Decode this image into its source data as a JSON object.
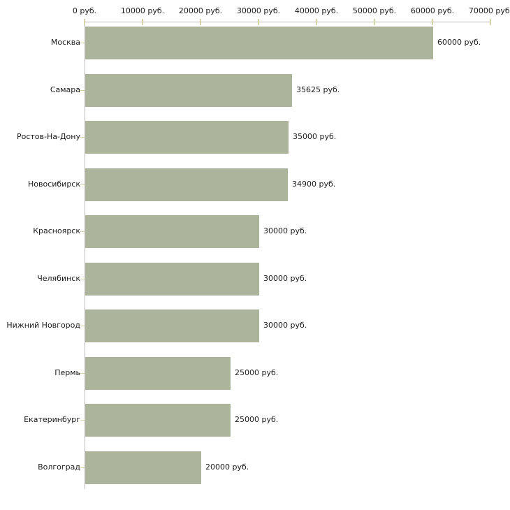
{
  "chart_data": {
    "type": "bar",
    "orientation": "horizontal",
    "title": "",
    "xlabel": "",
    "ylabel": "",
    "xlim": [
      0,
      70000
    ],
    "grid": false,
    "legend": "none",
    "categories": [
      "Москва",
      "Самара",
      "Ростов-На-Дону",
      "Новосибирск",
      "Красноярск",
      "Челябинск",
      "Нижний Новгород",
      "Пермь",
      "Екатеринбург",
      "Волгоград"
    ],
    "values": [
      60000,
      35625,
      35000,
      34900,
      30000,
      30000,
      30000,
      25000,
      25000,
      20000
    ],
    "value_labels": [
      "60000 руб.",
      "35625 руб.",
      "35000 руб.",
      "34900 руб.",
      "30000 руб.",
      "30000 руб.",
      "30000 руб.",
      "25000 руб.",
      "25000 руб.",
      "20000 руб."
    ],
    "x_ticks": [
      {
        "value": 0,
        "label": "0 руб."
      },
      {
        "value": 10000,
        "label": "10000 руб."
      },
      {
        "value": 20000,
        "label": "20000 руб."
      },
      {
        "value": 30000,
        "label": "30000 руб."
      },
      {
        "value": 40000,
        "label": "40000 руб."
      },
      {
        "value": 50000,
        "label": "50000 руб."
      },
      {
        "value": 60000,
        "label": "60000 руб."
      },
      {
        "value": 70000,
        "label": "70000 руб."
      }
    ],
    "colors": {
      "bar_fill": "#acb49c",
      "axis_line": "#bdbdbd",
      "tick_mark": "#d4d4a6",
      "text": "#1a1a1a",
      "background": "#ffffff"
    }
  }
}
